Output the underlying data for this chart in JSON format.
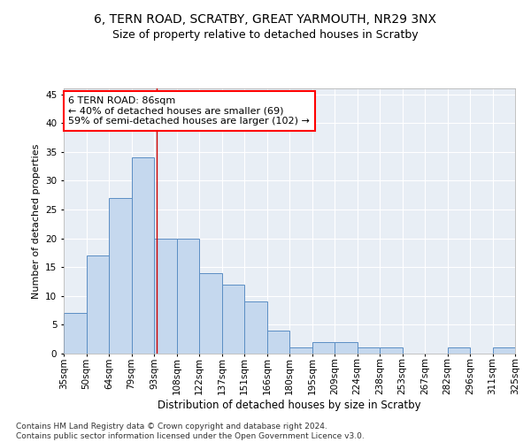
{
  "title1": "6, TERN ROAD, SCRATBY, GREAT YARMOUTH, NR29 3NX",
  "title2": "Size of property relative to detached houses in Scratby",
  "xlabel": "Distribution of detached houses by size in Scratby",
  "ylabel": "Number of detached properties",
  "bar_values": [
    7,
    17,
    27,
    34,
    20,
    20,
    14,
    12,
    9,
    4,
    1,
    2,
    2,
    1,
    1,
    0,
    0,
    1,
    0,
    1
  ],
  "bin_labels": [
    "35sqm",
    "50sqm",
    "64sqm",
    "79sqm",
    "93sqm",
    "108sqm",
    "122sqm",
    "137sqm",
    "151sqm",
    "166sqm",
    "180sqm",
    "195sqm",
    "209sqm",
    "224sqm",
    "238sqm",
    "253sqm",
    "267sqm",
    "282sqm",
    "296sqm",
    "311sqm",
    "325sqm"
  ],
  "bar_color": "#c5d8ee",
  "bar_edge_color": "#5b8ec4",
  "vline_x": 3.62,
  "vline_color": "#cc0000",
  "annotation_line1": "6 TERN ROAD: 86sqm",
  "annotation_line2": "← 40% of detached houses are smaller (69)",
  "annotation_line3": "59% of semi-detached houses are larger (102) →",
  "ylim": [
    0,
    46
  ],
  "yticks": [
    0,
    5,
    10,
    15,
    20,
    25,
    30,
    35,
    40,
    45
  ],
  "background_color": "#e8eef5",
  "footnote": "Contains HM Land Registry data © Crown copyright and database right 2024.\nContains public sector information licensed under the Open Government Licence v3.0.",
  "title1_fontsize": 10,
  "title2_fontsize": 9,
  "xlabel_fontsize": 8.5,
  "ylabel_fontsize": 8,
  "tick_fontsize": 7.5,
  "annotation_fontsize": 8,
  "footnote_fontsize": 6.5
}
